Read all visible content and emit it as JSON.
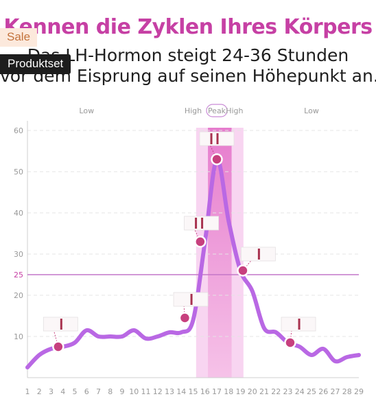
{
  "headline": "Kennen die Zyklen Ihres Körpers",
  "subtitle_line1": "Das LH-Hormon steigt 24-36 Stunden",
  "subtitle_line2": "vor dem Eisprung auf seinen Höhepunkt an.",
  "badges": {
    "sale": "Sale",
    "set": "Produktset"
  },
  "chart_data": {
    "type": "line",
    "x": [
      1,
      2,
      3,
      4,
      5,
      6,
      7,
      8,
      9,
      10,
      11,
      12,
      13,
      14,
      15,
      16,
      17,
      18,
      19,
      20,
      21,
      22,
      23,
      24,
      25,
      26,
      27,
      28,
      29
    ],
    "x_tick_labels": [
      "1",
      "2",
      "3",
      "4",
      "5",
      "6",
      "7",
      "8",
      "9",
      "10",
      "11",
      "12",
      "13",
      "14",
      "15",
      "16",
      "17",
      "18",
      "19",
      "20",
      "21",
      "22",
      "23",
      "24",
      "25",
      "26",
      "27",
      "28",
      "29"
    ],
    "series": [
      {
        "values": [
          2.5,
          5.5,
          7,
          7.5,
          8.5,
          11.5,
          10,
          10,
          10,
          11.5,
          9.5,
          10,
          11,
          11,
          14,
          33,
          53,
          38,
          26,
          21,
          12,
          11,
          8.5,
          7.5,
          5.5,
          7,
          4,
          5,
          5.5
        ],
        "color": "#b968e4"
      }
    ],
    "ylim": [
      0,
      60
    ],
    "y_ticks": [
      10,
      20,
      30,
      40,
      50,
      60
    ],
    "threshold": {
      "value": 25,
      "label": "25",
      "color": "#c477c8"
    },
    "phase_labels": [
      {
        "text": "Low",
        "x": 6
      },
      {
        "text": "High",
        "x": 15
      },
      {
        "text": "Peak",
        "x": 17
      },
      {
        "text": "High",
        "x": 18.5
      },
      {
        "text": "Low",
        "x": 25
      }
    ],
    "high_band": [
      15.25,
      19.25
    ],
    "peak_band": [
      16.25,
      18.25
    ],
    "highlighted_points": [
      {
        "x": 3.6,
        "y": 7.5,
        "test_lines": 1,
        "label_x": 3.8,
        "label_y": 13
      },
      {
        "x": 14.3,
        "y": 14.5,
        "test_lines": 1,
        "label_x": 14.8,
        "label_y": 19
      },
      {
        "x": 15.6,
        "y": 33,
        "test_lines": 2,
        "label_x": 15.7,
        "label_y": 37.5
      },
      {
        "x": 17,
        "y": 53,
        "test_lines": 2,
        "label_x": 17,
        "label_y": 58
      },
      {
        "x": 19.2,
        "y": 26,
        "test_lines": 1,
        "label_x": 20.5,
        "label_y": 30
      },
      {
        "x": 23.2,
        "y": 8.5,
        "test_lines": 1,
        "label_x": 23.9,
        "label_y": 13
      }
    ],
    "colors": {
      "accent": "#c640a4",
      "line": "#b968e4",
      "point": "#c7407e",
      "band": "#f6c7ec",
      "peak_band": "#ee9edb",
      "axis_text": "#999999"
    }
  }
}
